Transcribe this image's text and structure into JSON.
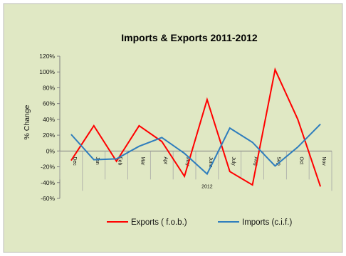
{
  "chart_data": {
    "type": "line",
    "title": "Imports & Exports 2011-2012",
    "ylabel": "% Change",
    "xlabel": "",
    "group_label": "2012",
    "categories": [
      "Dec",
      "Jan",
      "Feb",
      "Mar",
      "Apr",
      "May",
      "June",
      "July",
      "Aug",
      "Sep",
      "Oct",
      "Nov"
    ],
    "y_ticks": [
      "120%",
      "100%",
      "80%",
      "60%",
      "40%",
      "20%",
      "0%",
      "-20%",
      "-40%",
      "-60%"
    ],
    "ylim": [
      -60,
      120
    ],
    "y_step": 20,
    "grid": false,
    "legend_position": "bottom",
    "series": [
      {
        "name": "Exports ( f.o.b.)",
        "color": "#ff0000",
        "values": [
          -12,
          32,
          -13,
          32,
          12,
          -32,
          65,
          -26,
          -43,
          103,
          40,
          -45
        ]
      },
      {
        "name": "Imports (c.i.f.)",
        "color": "#2e7dbd",
        "values": [
          21,
          -11,
          -10,
          6,
          17,
          -3,
          -29,
          29,
          11,
          -19,
          5,
          34
        ]
      }
    ],
    "colors": {
      "background": "#e0e8c4",
      "axis": "#7f7f7f"
    }
  }
}
